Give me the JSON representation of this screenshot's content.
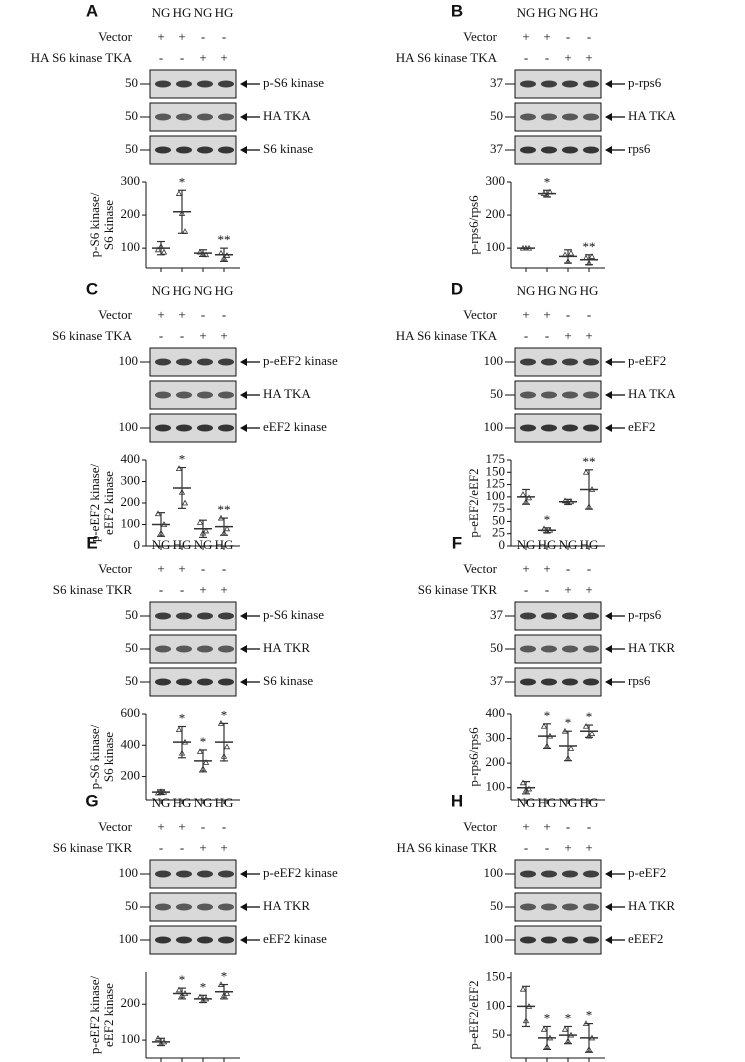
{
  "panels": [
    {
      "letter": "A",
      "lanes": [
        "NG",
        "HG",
        "NG",
        "HG"
      ],
      "rows": [
        {
          "label": "Vector",
          "signs": [
            "+",
            "+",
            "-",
            "-"
          ]
        },
        {
          "label": "HA S6 kinase TKA",
          "signs": [
            "-",
            "-",
            "+",
            "+"
          ]
        }
      ],
      "blots": [
        {
          "marker": "50",
          "target": "p-S6 kinase"
        },
        {
          "marker": "50",
          "target": "HA TKA"
        },
        {
          "marker": "50",
          "target": "S6 kinase"
        }
      ]
    },
    {
      "letter": "B",
      "lanes": [
        "NG",
        "HG",
        "NG",
        "HG"
      ],
      "rows": [
        {
          "label": "Vector",
          "signs": [
            "+",
            "+",
            "-",
            "-"
          ]
        },
        {
          "label": "HA S6 kinase TKA",
          "signs": [
            "-",
            "-",
            "+",
            "+"
          ]
        }
      ],
      "blots": [
        {
          "marker": "37",
          "target": "p-rps6"
        },
        {
          "marker": "50",
          "target": "HA TKA"
        },
        {
          "marker": "37",
          "target": "rps6"
        }
      ]
    },
    {
      "letter": "C",
      "lanes": [
        "NG",
        "HG",
        "NG",
        "HG"
      ],
      "rows": [
        {
          "label": "Vector",
          "signs": [
            "+",
            "+",
            "-",
            "-"
          ]
        },
        {
          "label": "S6 kinase TKA",
          "signs": [
            "-",
            "-",
            "+",
            "+"
          ]
        }
      ],
      "blots": [
        {
          "marker": "100",
          "target": "p-eEF2 kinase"
        },
        {
          "marker": null,
          "target": "HA TKA"
        },
        {
          "marker": "100",
          "target": "eEF2 kinase"
        }
      ]
    },
    {
      "letter": "D",
      "lanes": [
        "NG",
        "HG",
        "NG",
        "HG"
      ],
      "rows": [
        {
          "label": "Vector",
          "signs": [
            "+",
            "+",
            "-",
            "-"
          ]
        },
        {
          "label": "HA S6 kinase TKA",
          "signs": [
            "-",
            "-",
            "+",
            "+"
          ]
        }
      ],
      "blots": [
        {
          "marker": "100",
          "target": "p-eEF2"
        },
        {
          "marker": "50",
          "target": "HA TKA"
        },
        {
          "marker": "100",
          "target": "eEF2"
        }
      ]
    },
    {
      "letter": "E",
      "lanes": [
        "NG",
        "HG",
        "NG",
        "HG"
      ],
      "rows": [
        {
          "label": "Vector",
          "signs": [
            "+",
            "+",
            "-",
            "-"
          ]
        },
        {
          "label": "S6 kinase TKR",
          "signs": [
            "-",
            "-",
            "+",
            "+"
          ]
        }
      ],
      "blots": [
        {
          "marker": "50",
          "target": "p-S6 kinase"
        },
        {
          "marker": "50",
          "target": "HA TKR"
        },
        {
          "marker": "50",
          "target": "S6 kinase"
        }
      ]
    },
    {
      "letter": "F",
      "lanes": [
        "NG",
        "HG",
        "NG",
        "HG"
      ],
      "rows": [
        {
          "label": "Vector",
          "signs": [
            "+",
            "+",
            "-",
            "-"
          ]
        },
        {
          "label": "S6 kinase TKR",
          "signs": [
            "-",
            "-",
            "+",
            "+"
          ]
        }
      ],
      "blots": [
        {
          "marker": "37",
          "target": "p-rps6"
        },
        {
          "marker": "50",
          "target": "HA TKR"
        },
        {
          "marker": "37",
          "target": "rps6"
        }
      ]
    },
    {
      "letter": "G",
      "lanes": [
        "NG",
        "HG",
        "NG",
        "HG"
      ],
      "rows": [
        {
          "label": "Vector",
          "signs": [
            "+",
            "+",
            "-",
            "-"
          ]
        },
        {
          "label": "S6 kinase TKR",
          "signs": [
            "-",
            "-",
            "+",
            "+"
          ]
        }
      ],
      "blots": [
        {
          "marker": "100",
          "target": "p-eEF2 kinase"
        },
        {
          "marker": "50",
          "target": "HA TKR"
        },
        {
          "marker": "100",
          "target": "eEF2 kinase"
        }
      ]
    },
    {
      "letter": "H",
      "lanes": [
        "NG",
        "HG",
        "NG",
        "HG"
      ],
      "rows": [
        {
          "label": "Vector",
          "signs": [
            "+",
            "+",
            "-",
            "-"
          ]
        },
        {
          "label": "HA S6 kinase TKR",
          "signs": [
            "-",
            "-",
            "+",
            "+"
          ]
        }
      ],
      "blots": [
        {
          "marker": "100",
          "target": "p-eEF2"
        },
        {
          "marker": "50",
          "target": "HA TKR"
        },
        {
          "marker": "100",
          "target": "eEEF2"
        }
      ]
    }
  ],
  "chart_data": [
    {
      "type": "dot",
      "ylabel": [
        "p-S6 kinase/",
        "S6 kinase"
      ],
      "categories": [
        null,
        null,
        null,
        null
      ],
      "ylim": [
        40,
        300
      ],
      "yticks": [
        100,
        200,
        300
      ],
      "values": [
        100,
        210,
        85,
        80
      ],
      "errors": [
        20,
        65,
        10,
        20
      ],
      "points": [
        [
          95,
          105,
          88
        ],
        [
          265,
          205,
          150
        ],
        [
          88,
          82,
          80
        ],
        [
          85,
          70,
          78
        ]
      ],
      "annotations": [
        null,
        "*",
        null,
        "**"
      ],
      "color": "#333333"
    },
    {
      "type": "dot",
      "ylabel": [
        "p-rps6/rps6"
      ],
      "categories": [
        null,
        null,
        null,
        null
      ],
      "ylim": [
        40,
        300
      ],
      "yticks": [
        100,
        200,
        300
      ],
      "values": [
        100,
        265,
        75,
        65
      ],
      "errors": [
        0,
        10,
        20,
        15
      ],
      "points": [
        [
          100,
          100,
          100
        ],
        [
          265,
          260,
          270
        ],
        [
          80,
          60,
          85
        ],
        [
          70,
          55,
          75
        ]
      ],
      "annotations": [
        null,
        "*",
        null,
        "**"
      ],
      "color": "#333333"
    },
    {
      "type": "dot",
      "ylabel": [
        "p-eEF2 kinase/",
        "eEF2 kinase"
      ],
      "categories": [
        null,
        null,
        null,
        null
      ],
      "ylim": [
        0,
        400
      ],
      "yticks": [
        0,
        100,
        200,
        300,
        400
      ],
      "values": [
        100,
        270,
        80,
        90
      ],
      "errors": [
        55,
        95,
        40,
        40
      ],
      "points": [
        [
          150,
          60,
          100
        ],
        [
          360,
          250,
          200
        ],
        [
          110,
          60,
          70
        ],
        [
          130,
          60,
          80
        ]
      ],
      "annotations": [
        null,
        "*",
        null,
        "**"
      ],
      "color": "#333333"
    },
    {
      "type": "dot",
      "ylabel": [
        "p-eEF2/eEF2"
      ],
      "categories": [
        null,
        null,
        null,
        null
      ],
      "ylim": [
        0,
        175
      ],
      "yticks": [
        0,
        25,
        50,
        75,
        100,
        125,
        150,
        175
      ],
      "values": [
        100,
        32,
        90,
        115
      ],
      "errors": [
        15,
        5,
        5,
        40
      ],
      "points": [
        [
          105,
          90,
          98
        ],
        [
          35,
          30,
          32
        ],
        [
          92,
          88,
          90
        ],
        [
          150,
          80,
          115
        ]
      ],
      "annotations": [
        null,
        "*",
        null,
        "**"
      ],
      "color": "#333333"
    },
    {
      "type": "dot",
      "ylabel": [
        "p-S6 kinase/",
        "S6 kinase"
      ],
      "categories": [
        null,
        null,
        null,
        null
      ],
      "ylim": [
        50,
        600
      ],
      "yticks": [
        200,
        400,
        600
      ],
      "values": [
        100,
        420,
        300,
        420
      ],
      "errors": [
        15,
        100,
        70,
        120
      ],
      "points": [
        [
          95,
          105,
          100
        ],
        [
          500,
          350,
          420
        ],
        [
          360,
          250,
          290
        ],
        [
          540,
          330,
          390
        ]
      ],
      "annotations": [
        null,
        "*",
        "*",
        "*"
      ],
      "color": "#333333"
    },
    {
      "type": "dot",
      "ylabel": [
        "p-rps6/rps6"
      ],
      "categories": [
        null,
        null,
        null,
        null
      ],
      "ylim": [
        50,
        400
      ],
      "yticks": [
        100,
        200,
        300,
        400
      ],
      "values": [
        100,
        310,
        270,
        330
      ],
      "errors": [
        25,
        50,
        60,
        25
      ],
      "points": [
        [
          120,
          90,
          95
        ],
        [
          350,
          270,
          310
        ],
        [
          330,
          220,
          260
        ],
        [
          350,
          310,
          320
        ]
      ],
      "annotations": [
        null,
        "*",
        "*",
        "*"
      ],
      "color": "#333333"
    },
    {
      "type": "dot",
      "ylabel": [
        "p-eEF2 kinase/",
        "eEF2 kinase"
      ],
      "categories": [
        null,
        null,
        null,
        null
      ],
      "ylim": [
        50,
        290
      ],
      "yticks": [
        100,
        200
      ],
      "values": [
        95,
        230,
        215,
        235
      ],
      "errors": [
        10,
        15,
        10,
        20
      ],
      "points": [
        [
          105,
          90,
          95
        ],
        [
          240,
          225,
          230
        ],
        [
          220,
          210,
          215
        ],
        [
          255,
          225,
          230
        ]
      ],
      "annotations": [
        null,
        "*",
        "*",
        "*"
      ],
      "color": "#333333"
    },
    {
      "type": "dot",
      "ylabel": [
        "p-eEF2/eEF2"
      ],
      "categories": [
        null,
        null,
        null,
        null
      ],
      "ylim": [
        10,
        160
      ],
      "yticks": [
        50,
        100,
        150
      ],
      "values": [
        100,
        45,
        50,
        45
      ],
      "errors": [
        35,
        20,
        15,
        25
      ],
      "points": [
        [
          130,
          75,
          100
        ],
        [
          60,
          30,
          45
        ],
        [
          60,
          40,
          50
        ],
        [
          70,
          25,
          45
        ]
      ],
      "annotations": [
        null,
        "*",
        "*",
        "*"
      ],
      "color": "#333333"
    }
  ]
}
